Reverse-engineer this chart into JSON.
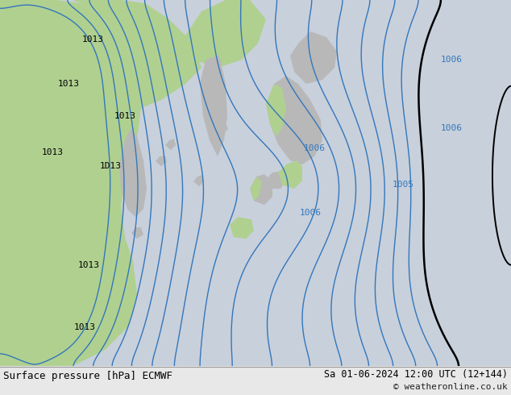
{
  "title_left": "Surface pressure [hPa] ECMWF",
  "title_right": "Sa 01-06-2024 12:00 UTC (12+144)",
  "copyright": "© weatheronline.co.uk",
  "bg_color": "#c8d0dc",
  "land_color_green": "#b0d090",
  "land_color_gray": "#b8b8b8",
  "contour_blue_color": "#3377bb",
  "contour_black_color": "#000000",
  "contour_red_color": "#cc2200",
  "bottom_bar_color": "#e0e0e0",
  "figsize": [
    6.34,
    4.9
  ],
  "dpi": 100
}
